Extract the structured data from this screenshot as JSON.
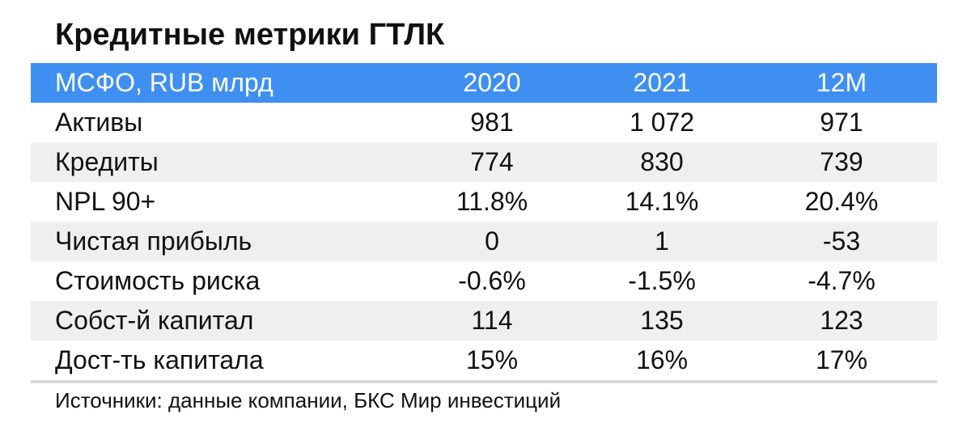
{
  "title": "Кредитные метрики ГТЛК",
  "table": {
    "header": [
      "МСФО, RUB млрд",
      "2020",
      "2021",
      "12M"
    ],
    "rows": [
      [
        "Активы",
        "981",
        "1 072",
        "971"
      ],
      [
        "Кредиты",
        "774",
        "830",
        "739"
      ],
      [
        "NPL 90+",
        "11.8%",
        "14.1%",
        "20.4%"
      ],
      [
        "Чистая прибыль",
        "0",
        "1",
        "-53"
      ],
      [
        "Стоимость риска",
        "-0.6%",
        "-1.5%",
        "-4.7%"
      ],
      [
        "Собст-й капитал",
        "114",
        "135",
        "123"
      ],
      [
        "Дост-ть капитала",
        "15%",
        "16%",
        "17%"
      ]
    ]
  },
  "source": "Источники: данные компании, БКС Мир инвестиций"
}
